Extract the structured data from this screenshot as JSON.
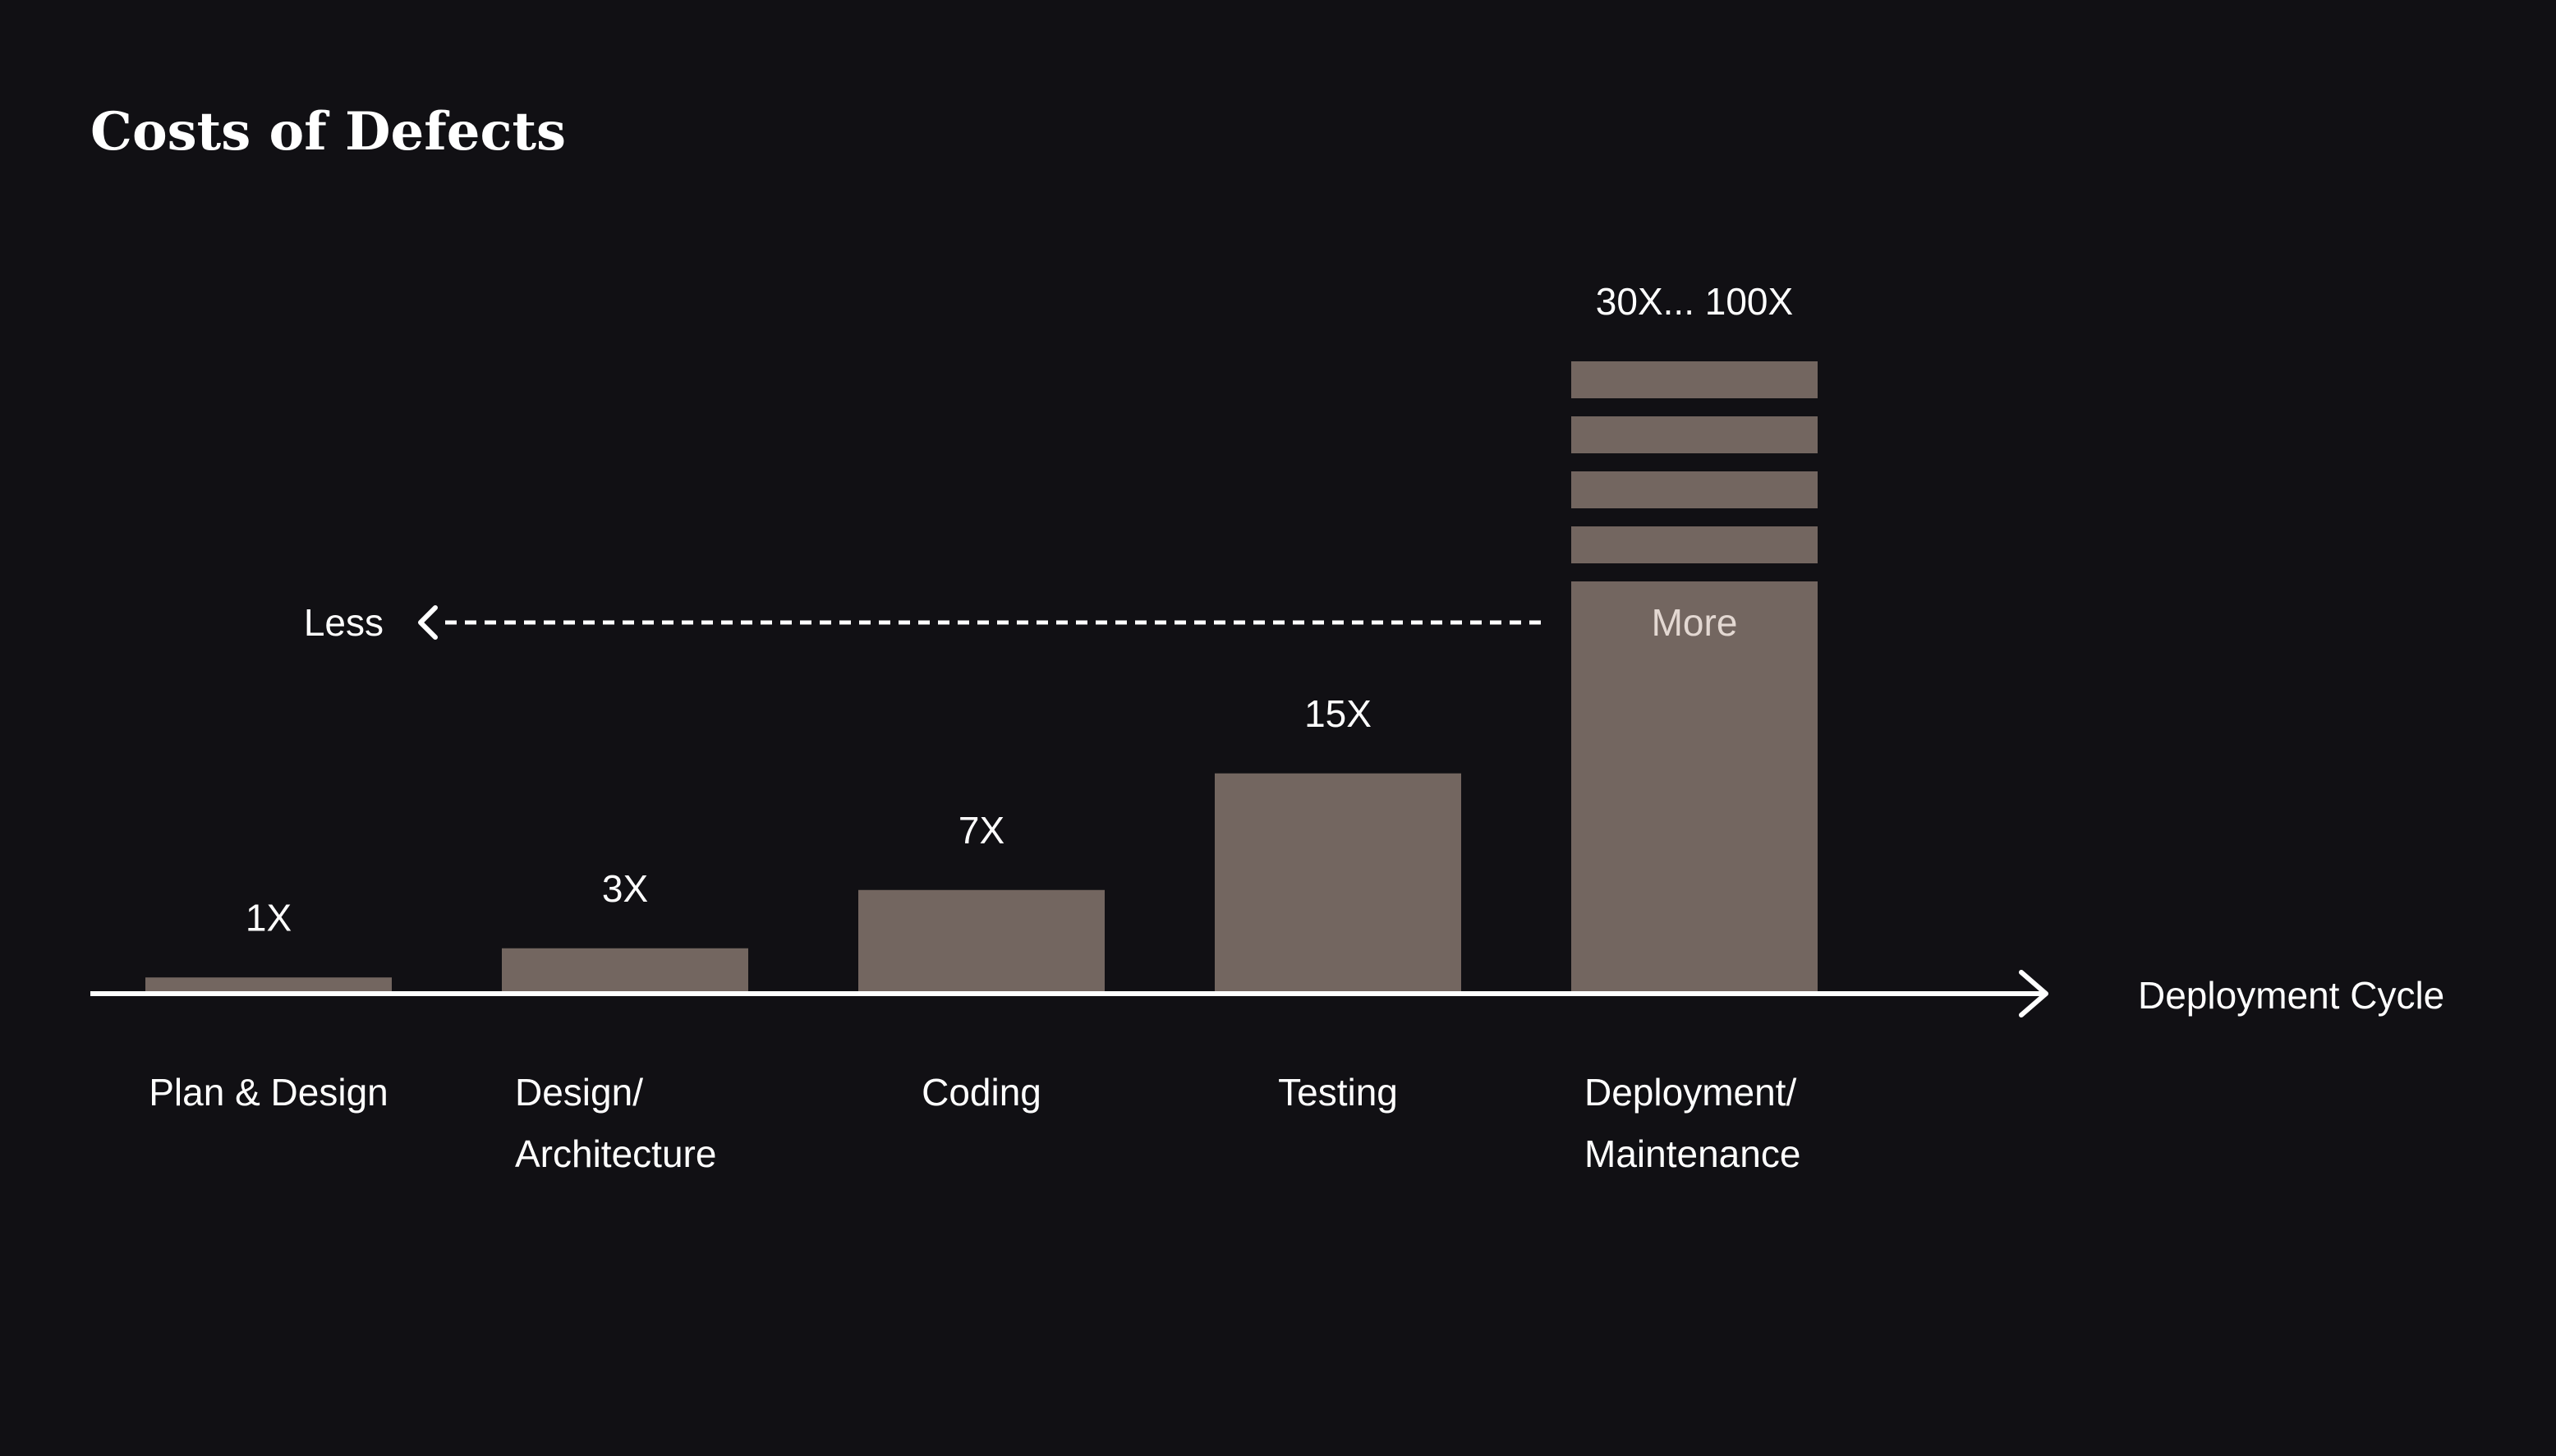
{
  "colors": {
    "background": "#111014",
    "bar": "#736660",
    "axis": "#ffffff",
    "text": "#ffffff",
    "more_text": "#e3d8d2"
  },
  "chart_data": {
    "type": "bar",
    "title": "Costs of Defects",
    "xlabel": "Deployment Cycle",
    "ylabel": "",
    "categories": [
      [
        "Plan & Design"
      ],
      [
        "Design/",
        "Architecture"
      ],
      [
        "Coding"
      ],
      [
        "Testing"
      ],
      [
        "Deployment/",
        "Maintenance"
      ]
    ],
    "values": [
      1,
      3,
      7,
      15,
      30
    ],
    "value_labels": [
      "1X",
      "3X",
      "7X",
      "15X",
      "30X... 100X"
    ],
    "last_bar_extends_to": 100,
    "last_bar_style": "broken stacked segments",
    "ylim": [
      0,
      30
    ],
    "grid": false,
    "annotations": {
      "more": "More",
      "less": "Less"
    }
  }
}
